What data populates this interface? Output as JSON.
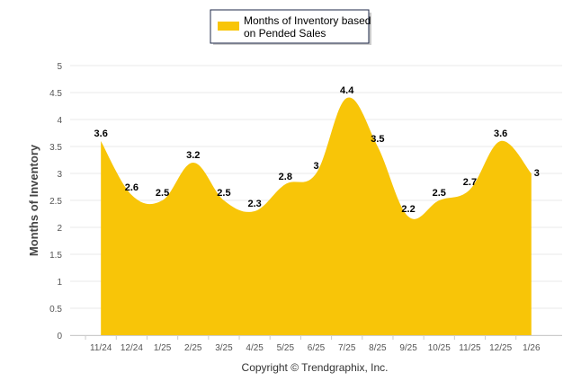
{
  "chart_data": {
    "type": "area",
    "title": "",
    "xlabel": "",
    "ylabel": "Months of Inventory",
    "ylim": [
      0,
      5
    ],
    "ytick_step": 0.5,
    "yticks": [
      "0",
      "0.5",
      "1",
      "1.5",
      "2",
      "2.5",
      "3",
      "3.5",
      "4",
      "4.5",
      "5"
    ],
    "grid": true,
    "legend_position": "top-center",
    "categories": [
      "11/24",
      "12/24",
      "1/25",
      "2/25",
      "3/25",
      "4/25",
      "5/25",
      "6/25",
      "7/25",
      "8/25",
      "9/25",
      "10/25",
      "11/25",
      "12/25",
      "1/26"
    ],
    "series": [
      {
        "name": "Months of Inventory based on Pended Sales",
        "legend_lines": [
          "Months of Inventory based",
          "on Pended Sales"
        ],
        "color": "#F8C508",
        "values": [
          3.6,
          2.6,
          2.5,
          3.2,
          2.5,
          2.3,
          2.8,
          3,
          4.4,
          3.5,
          2.2,
          2.5,
          2.7,
          3.6,
          3
        ]
      }
    ],
    "footer": "Copyright © Trendgraphix, Inc."
  }
}
